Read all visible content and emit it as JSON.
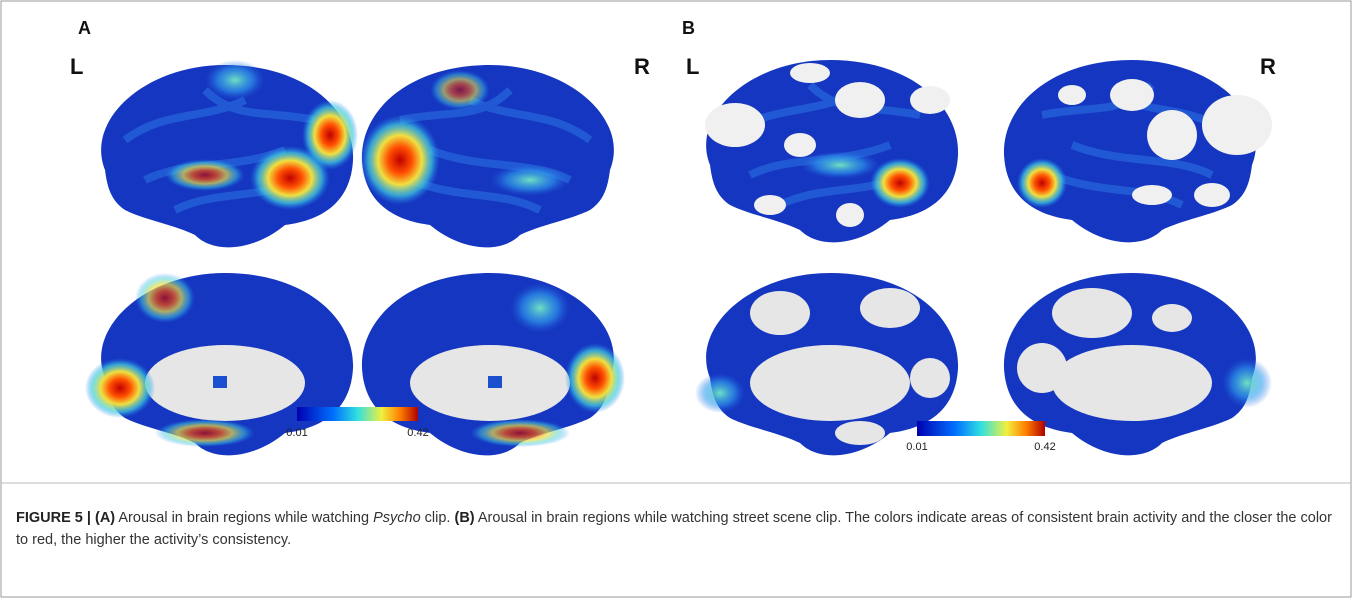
{
  "panels": [
    {
      "label": "A",
      "left": "L",
      "right": "R",
      "colorbar": {
        "min": "0.01",
        "max": "0.42"
      }
    },
    {
      "label": "B",
      "left": "L",
      "right": "R",
      "colorbar": {
        "min": "0.01",
        "max": "0.42"
      }
    }
  ],
  "caption": {
    "figure": "FIGURE 5 |",
    "a_label": "(A)",
    "a_text": "Arousal in brain regions while watching",
    "a_italic": "Psycho",
    "a_end": "clip.",
    "b_label": "(B)",
    "b_text": "Arousal in brain regions while watching street scene clip. The colors indicate areas of consistent brain activity and the closer the color to red, the higher the activity’s consistency."
  }
}
